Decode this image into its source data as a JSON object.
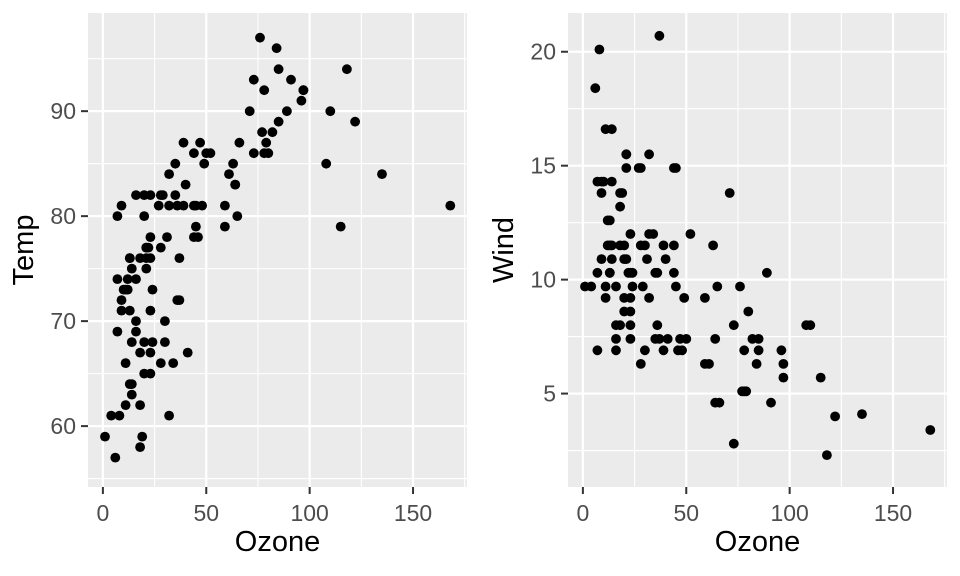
{
  "page": {
    "background": "#FFFFFF"
  },
  "chart_data": [
    {
      "type": "scatter",
      "title": "",
      "xlabel": "Ozone",
      "ylabel": "Temp",
      "x_ticks": [
        0,
        50,
        100,
        150
      ],
      "y_ticks": [
        60,
        70,
        80,
        90
      ],
      "x_minor_ticks": [
        25,
        75,
        125,
        175
      ],
      "y_minor_ticks": [
        55,
        65,
        75,
        85,
        95
      ],
      "xlim": [
        -7.2,
        176.1
      ],
      "ylim": [
        54.2,
        99.35
      ],
      "grid": true,
      "legend": false,
      "panel_bg": "#EBEBEB",
      "grid_color": "#FFFFFF",
      "point_color": "#000000",
      "axis_text_color": "#4D4D4D",
      "tick_mark_color": "#333333",
      "axis_title_color": "#000000",
      "points": [
        [
          41,
          67
        ],
        [
          36,
          72
        ],
        [
          12,
          74
        ],
        [
          18,
          62
        ],
        [
          28,
          66
        ],
        [
          23,
          65
        ],
        [
          19,
          59
        ],
        [
          8,
          61
        ],
        [
          7,
          74
        ],
        [
          16,
          69
        ],
        [
          11,
          66
        ],
        [
          14,
          68
        ],
        [
          18,
          58
        ],
        [
          14,
          64
        ],
        [
          34,
          66
        ],
        [
          6,
          57
        ],
        [
          30,
          68
        ],
        [
          11,
          62
        ],
        [
          1,
          59
        ],
        [
          11,
          73
        ],
        [
          4,
          61
        ],
        [
          32,
          61
        ],
        [
          23,
          67
        ],
        [
          45,
          81
        ],
        [
          115,
          79
        ],
        [
          37,
          76
        ],
        [
          29,
          82
        ],
        [
          71,
          90
        ],
        [
          39,
          87
        ],
        [
          23,
          82
        ],
        [
          21,
          77
        ],
        [
          37,
          72
        ],
        [
          20,
          65
        ],
        [
          12,
          73
        ],
        [
          13,
          76
        ],
        [
          135,
          84
        ],
        [
          49,
          85
        ],
        [
          32,
          81
        ],
        [
          64,
          83
        ],
        [
          40,
          83
        ],
        [
          77,
          88
        ],
        [
          97,
          92
        ],
        [
          97,
          92
        ],
        [
          85,
          89
        ],
        [
          10,
          73
        ],
        [
          27,
          81
        ],
        [
          7,
          80
        ],
        [
          48,
          81
        ],
        [
          35,
          82
        ],
        [
          61,
          84
        ],
        [
          79,
          87
        ],
        [
          63,
          85
        ],
        [
          16,
          74
        ],
        [
          80,
          86
        ],
        [
          108,
          85
        ],
        [
          20,
          82
        ],
        [
          52,
          86
        ],
        [
          82,
          88
        ],
        [
          50,
          86
        ],
        [
          64,
          83
        ],
        [
          59,
          81
        ],
        [
          39,
          81
        ],
        [
          9,
          81
        ],
        [
          16,
          82
        ],
        [
          78,
          86
        ],
        [
          35,
          85
        ],
        [
          66,
          87
        ],
        [
          122,
          89
        ],
        [
          89,
          90
        ],
        [
          110,
          90
        ],
        [
          44,
          86
        ],
        [
          28,
          82
        ],
        [
          65,
          80
        ],
        [
          22,
          77
        ],
        [
          59,
          79
        ],
        [
          23,
          76
        ],
        [
          31,
          78
        ],
        [
          44,
          78
        ],
        [
          21,
          77
        ],
        [
          9,
          72
        ],
        [
          45,
          79
        ],
        [
          168,
          81
        ],
        [
          73,
          86
        ],
        [
          76,
          97
        ],
        [
          118,
          94
        ],
        [
          84,
          96
        ],
        [
          85,
          94
        ],
        [
          96,
          91
        ],
        [
          78,
          92
        ],
        [
          73,
          93
        ],
        [
          91,
          93
        ],
        [
          47,
          87
        ],
        [
          32,
          84
        ],
        [
          20,
          80
        ],
        [
          23,
          78
        ],
        [
          21,
          75
        ],
        [
          24,
          73
        ],
        [
          44,
          81
        ],
        [
          21,
          76
        ],
        [
          28,
          77
        ],
        [
          9,
          71
        ],
        [
          13,
          71
        ],
        [
          46,
          78
        ],
        [
          18,
          67
        ],
        [
          13,
          76
        ],
        [
          24,
          68
        ],
        [
          16,
          70
        ],
        [
          13,
          64
        ],
        [
          23,
          71
        ],
        [
          36,
          81
        ],
        [
          7,
          69
        ],
        [
          14,
          63
        ],
        [
          30,
          70
        ],
        [
          14,
          75
        ],
        [
          18,
          76
        ],
        [
          20,
          68
        ]
      ]
    },
    {
      "type": "scatter",
      "title": "",
      "xlabel": "Ozone",
      "ylabel": "Wind",
      "x_ticks": [
        0,
        50,
        100,
        150
      ],
      "y_ticks": [
        5,
        10,
        15,
        20
      ],
      "x_minor_ticks": [
        25,
        75,
        125,
        175
      ],
      "y_minor_ticks": [
        2.5,
        7.5,
        12.5,
        17.5
      ],
      "xlim": [
        -7.2,
        176.1
      ],
      "ylim": [
        0.9,
        21.7
      ],
      "grid": true,
      "legend": false,
      "panel_bg": "#EBEBEB",
      "grid_color": "#FFFFFF",
      "point_color": "#000000",
      "axis_text_color": "#4D4D4D",
      "tick_mark_color": "#333333",
      "axis_title_color": "#000000",
      "points": [
        [
          41,
          7.4
        ],
        [
          36,
          8
        ],
        [
          12,
          12.6
        ],
        [
          18,
          11.5
        ],
        [
          28,
          14.9
        ],
        [
          23,
          8.6
        ],
        [
          19,
          13.8
        ],
        [
          8,
          20.1
        ],
        [
          7,
          6.9
        ],
        [
          16,
          9.7
        ],
        [
          11,
          9.2
        ],
        [
          14,
          10.9
        ],
        [
          18,
          13.2
        ],
        [
          14,
          11.5
        ],
        [
          34,
          12
        ],
        [
          6,
          18.4
        ],
        [
          30,
          11.5
        ],
        [
          11,
          9.7
        ],
        [
          1,
          9.7
        ],
        [
          11,
          16.6
        ],
        [
          4,
          9.7
        ],
        [
          32,
          12
        ],
        [
          23,
          12
        ],
        [
          45,
          14.9
        ],
        [
          115,
          5.7
        ],
        [
          37,
          7.4
        ],
        [
          29,
          9.7
        ],
        [
          71,
          13.8
        ],
        [
          39,
          11.5
        ],
        [
          23,
          8
        ],
        [
          21,
          14.9
        ],
        [
          37,
          20.7
        ],
        [
          20,
          9.2
        ],
        [
          12,
          11.5
        ],
        [
          13,
          10.3
        ],
        [
          135,
          4.1
        ],
        [
          49,
          9.2
        ],
        [
          32,
          9.2
        ],
        [
          64,
          4.6
        ],
        [
          40,
          10.9
        ],
        [
          77,
          5.1
        ],
        [
          97,
          6.3
        ],
        [
          97,
          5.7
        ],
        [
          85,
          7.4
        ],
        [
          10,
          14.3
        ],
        [
          27,
          14.9
        ],
        [
          7,
          14.3
        ],
        [
          48,
          6.9
        ],
        [
          35,
          10.3
        ],
        [
          61,
          6.3
        ],
        [
          79,
          5.1
        ],
        [
          63,
          11.5
        ],
        [
          16,
          6.9
        ],
        [
          80,
          8.6
        ],
        [
          108,
          8
        ],
        [
          20,
          8.6
        ],
        [
          52,
          12
        ],
        [
          82,
          7.4
        ],
        [
          50,
          7.4
        ],
        [
          64,
          7.4
        ],
        [
          59,
          9.2
        ],
        [
          39,
          6.9
        ],
        [
          9,
          13.8
        ],
        [
          16,
          7.4
        ],
        [
          78,
          6.9
        ],
        [
          35,
          7.4
        ],
        [
          66,
          4.6
        ],
        [
          122,
          4
        ],
        [
          89,
          10.3
        ],
        [
          110,
          8
        ],
        [
          44,
          11.5
        ],
        [
          28,
          11.5
        ],
        [
          65,
          9.7
        ],
        [
          22,
          10.3
        ],
        [
          59,
          6.3
        ],
        [
          23,
          7.4
        ],
        [
          31,
          10.9
        ],
        [
          44,
          10.3
        ],
        [
          21,
          15.5
        ],
        [
          9,
          14.3
        ],
        [
          45,
          9.7
        ],
        [
          168,
          3.4
        ],
        [
          73,
          8
        ],
        [
          76,
          9.7
        ],
        [
          118,
          2.3
        ],
        [
          84,
          6.3
        ],
        [
          85,
          6.9
        ],
        [
          96,
          6.9
        ],
        [
          78,
          5.1
        ],
        [
          73,
          2.8
        ],
        [
          91,
          4.6
        ],
        [
          47,
          7.4
        ],
        [
          32,
          15.5
        ],
        [
          20,
          10.9
        ],
        [
          23,
          10.3
        ],
        [
          21,
          10.9
        ],
        [
          24,
          9.7
        ],
        [
          44,
          14.9
        ],
        [
          21,
          15.5
        ],
        [
          28,
          6.3
        ],
        [
          9,
          10.9
        ],
        [
          13,
          11.5
        ],
        [
          46,
          6.9
        ],
        [
          18,
          13.8
        ],
        [
          13,
          10.3
        ],
        [
          24,
          10.3
        ],
        [
          16,
          8
        ],
        [
          13,
          12.6
        ],
        [
          23,
          9.2
        ],
        [
          36,
          10.3
        ],
        [
          7,
          10.3
        ],
        [
          14,
          16.6
        ],
        [
          30,
          6.9
        ],
        [
          14,
          14.3
        ],
        [
          18,
          8
        ],
        [
          20,
          11.5
        ]
      ]
    }
  ]
}
